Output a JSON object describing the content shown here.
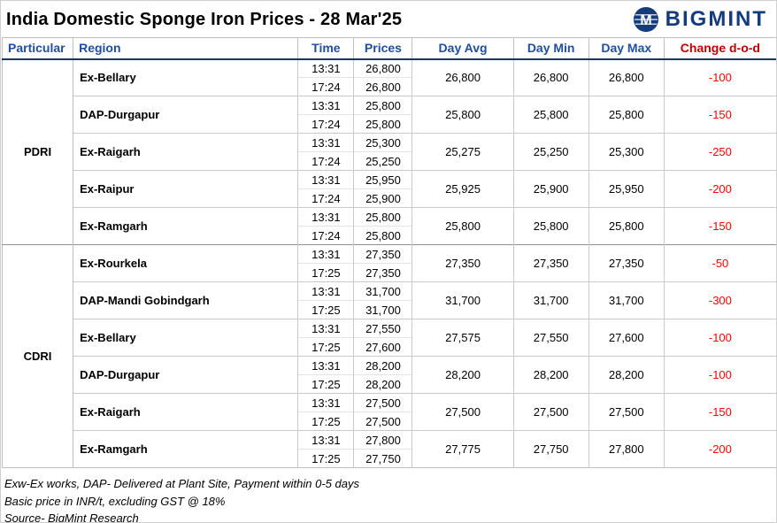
{
  "title": "India Domestic Sponge Iron Prices - 28 Mar'25",
  "logo": {
    "text": "BIGMINT",
    "icon": "bigmint-globe-icon"
  },
  "colors": {
    "header_blue": "#1f4e9c",
    "header_red": "#c00000",
    "change_red": "#ff0000",
    "brand_navy": "#143c7d",
    "group_divider": "#8f8f8f"
  },
  "table": {
    "headers": {
      "particular": "Particular",
      "region": "Region",
      "time": "Time",
      "prices": "Prices",
      "day_avg": "Day Avg",
      "day_min": "Day Min",
      "day_max": "Day Max",
      "change": "Change d-o-d"
    },
    "groups": [
      {
        "particular": "PDRI",
        "rows": [
          {
            "region": "Ex-Bellary",
            "times": [
              "13:31",
              "17:24"
            ],
            "prices": [
              "26,800",
              "26,800"
            ],
            "day_avg": "26,800",
            "day_min": "26,800",
            "day_max": "26,800",
            "change": "-100"
          },
          {
            "region": "DAP-Durgapur",
            "times": [
              "13:31",
              "17:24"
            ],
            "prices": [
              "25,800",
              "25,800"
            ],
            "day_avg": "25,800",
            "day_min": "25,800",
            "day_max": "25,800",
            "change": "-150"
          },
          {
            "region": "Ex-Raigarh",
            "times": [
              "13:31",
              "17:24"
            ],
            "prices": [
              "25,300",
              "25,250"
            ],
            "day_avg": "25,275",
            "day_min": "25,250",
            "day_max": "25,300",
            "change": "-250"
          },
          {
            "region": "Ex-Raipur",
            "times": [
              "13:31",
              "17:24"
            ],
            "prices": [
              "25,950",
              "25,900"
            ],
            "day_avg": "25,925",
            "day_min": "25,900",
            "day_max": "25,950",
            "change": "-200"
          },
          {
            "region": "Ex-Ramgarh",
            "times": [
              "13:31",
              "17:24"
            ],
            "prices": [
              "25,800",
              "25,800"
            ],
            "day_avg": "25,800",
            "day_min": "25,800",
            "day_max": "25,800",
            "change": "-150"
          }
        ]
      },
      {
        "particular": "CDRI",
        "rows": [
          {
            "region": "Ex-Rourkela",
            "times": [
              "13:31",
              "17:25"
            ],
            "prices": [
              "27,350",
              "27,350"
            ],
            "day_avg": "27,350",
            "day_min": "27,350",
            "day_max": "27,350",
            "change": "-50"
          },
          {
            "region": "DAP-Mandi Gobindgarh",
            "times": [
              "13:31",
              "17:25"
            ],
            "prices": [
              "31,700",
              "31,700"
            ],
            "day_avg": "31,700",
            "day_min": "31,700",
            "day_max": "31,700",
            "change": "-300"
          },
          {
            "region": "Ex-Bellary",
            "times": [
              "13:31",
              "17:25"
            ],
            "prices": [
              "27,550",
              "27,600"
            ],
            "day_avg": "27,575",
            "day_min": "27,550",
            "day_max": "27,600",
            "change": "-100"
          },
          {
            "region": "DAP-Durgapur",
            "times": [
              "13:31",
              "17:25"
            ],
            "prices": [
              "28,200",
              "28,200"
            ],
            "day_avg": "28,200",
            "day_min": "28,200",
            "day_max": "28,200",
            "change": "-100"
          },
          {
            "region": "Ex-Raigarh",
            "times": [
              "13:31",
              "17:25"
            ],
            "prices": [
              "27,500",
              "27,500"
            ],
            "day_avg": "27,500",
            "day_min": "27,500",
            "day_max": "27,500",
            "change": "-150"
          },
          {
            "region": "Ex-Ramgarh",
            "times": [
              "13:31",
              "17:25"
            ],
            "prices": [
              "27,800",
              "27,750"
            ],
            "day_avg": "27,775",
            "day_min": "27,750",
            "day_max": "27,800",
            "change": "-200"
          }
        ]
      }
    ]
  },
  "footnotes": [
    "Exw-Ex works, DAP- Delivered at Plant Site, Payment within 0-5 days",
    "Basic price in INR/t, excluding GST @ 18%",
    "Source- BigMint Research"
  ]
}
